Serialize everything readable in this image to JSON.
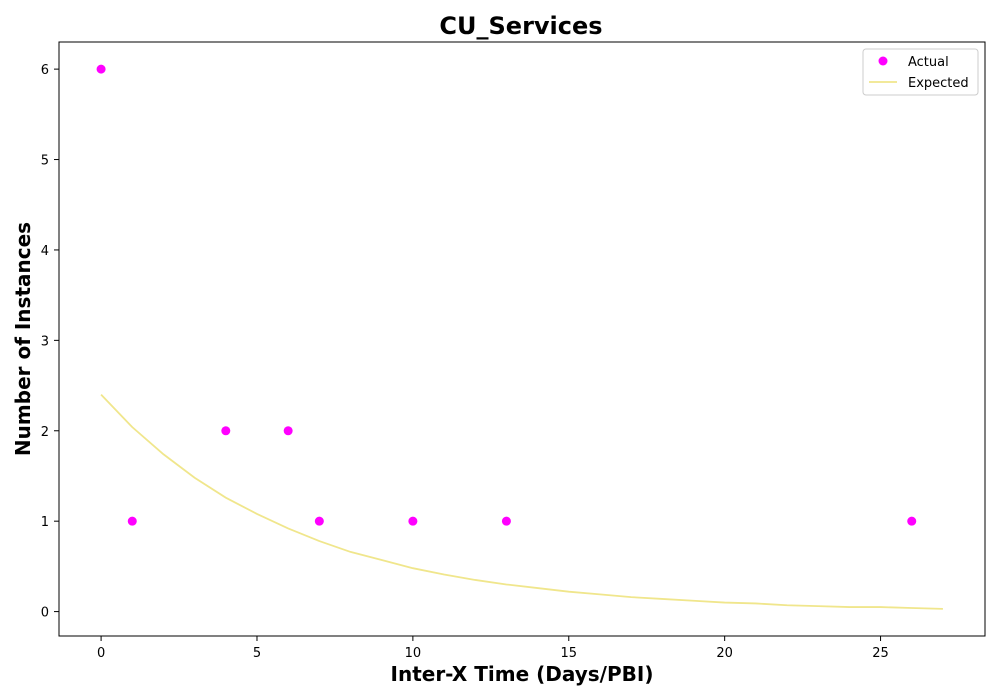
{
  "chart_data": {
    "type": "scatter",
    "title": "CU_Services",
    "xlabel": "Inter-X Time (Days/PBI)",
    "ylabel": "Number of Instances",
    "xlim": [
      -1.35,
      28.35
    ],
    "ylim": [
      -0.27,
      6.3
    ],
    "xticks": [
      0,
      5,
      10,
      15,
      20,
      25
    ],
    "yticks": [
      0,
      1,
      2,
      3,
      4,
      5,
      6
    ],
    "grid": false,
    "legend_position": "top-right",
    "series": [
      {
        "name": "Actual",
        "kind": "scatter",
        "color": "#ff00ff",
        "points": [
          {
            "x": 0,
            "y": 6
          },
          {
            "x": 1,
            "y": 1
          },
          {
            "x": 4,
            "y": 2
          },
          {
            "x": 6,
            "y": 2
          },
          {
            "x": 7,
            "y": 1
          },
          {
            "x": 10,
            "y": 1
          },
          {
            "x": 13,
            "y": 1
          },
          {
            "x": 26,
            "y": 1
          }
        ]
      },
      {
        "name": "Expected",
        "kind": "line",
        "color": "#f0e68c",
        "points": [
          {
            "x": 0,
            "y": 2.4
          },
          {
            "x": 1,
            "y": 2.04
          },
          {
            "x": 2,
            "y": 1.74
          },
          {
            "x": 3,
            "y": 1.48
          },
          {
            "x": 4,
            "y": 1.26
          },
          {
            "x": 5,
            "y": 1.08
          },
          {
            "x": 6,
            "y": 0.92
          },
          {
            "x": 7,
            "y": 0.78
          },
          {
            "x": 8,
            "y": 0.66
          },
          {
            "x": 9,
            "y": 0.57
          },
          {
            "x": 10,
            "y": 0.48
          },
          {
            "x": 11,
            "y": 0.41
          },
          {
            "x": 12,
            "y": 0.35
          },
          {
            "x": 13,
            "y": 0.3
          },
          {
            "x": 14,
            "y": 0.26
          },
          {
            "x": 15,
            "y": 0.22
          },
          {
            "x": 16,
            "y": 0.19
          },
          {
            "x": 17,
            "y": 0.16
          },
          {
            "x": 18,
            "y": 0.14
          },
          {
            "x": 19,
            "y": 0.12
          },
          {
            "x": 20,
            "y": 0.1
          },
          {
            "x": 21,
            "y": 0.09
          },
          {
            "x": 22,
            "y": 0.07
          },
          {
            "x": 23,
            "y": 0.06
          },
          {
            "x": 24,
            "y": 0.05
          },
          {
            "x": 25,
            "y": 0.05
          },
          {
            "x": 26,
            "y": 0.04
          },
          {
            "x": 27,
            "y": 0.03
          }
        ]
      }
    ]
  }
}
